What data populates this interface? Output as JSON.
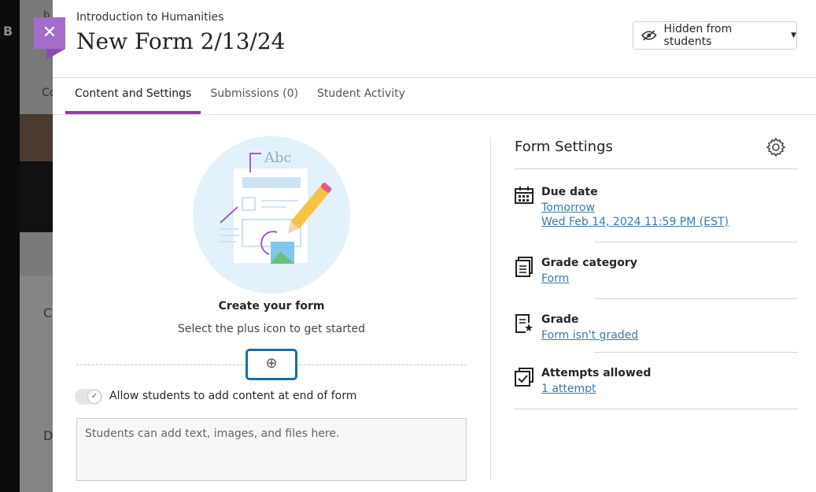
{
  "background": {
    "sidebar_letter": "B",
    "peek_texts": [
      "b",
      "Co",
      "C",
      "D"
    ]
  },
  "header": {
    "course": "Introduction to Humanities",
    "title": "New Form 2/13/24",
    "visibility": "Hidden from students"
  },
  "tabs": [
    {
      "label": "Content and Settings",
      "active": true
    },
    {
      "label": "Submissions (0)"
    },
    {
      "label": "Student Activity"
    }
  ],
  "main": {
    "heading": "Create your form",
    "subheading": "Select the plus icon to get started",
    "illustration_text": "Abc",
    "toggle_label": "Allow students to add content at end of form",
    "toggle_on": true,
    "textarea_placeholder": "Students can add text, images, and files here."
  },
  "settings": {
    "title": "Form Settings",
    "items": [
      {
        "icon": "calendar-icon",
        "label": "Due date",
        "links": [
          "Tomorrow",
          "Wed Feb 14, 2024 11:59 PM (EST)"
        ]
      },
      {
        "icon": "document-icon",
        "label": "Grade category",
        "links": [
          "Form"
        ]
      },
      {
        "icon": "grade-star-icon",
        "label": "Grade",
        "links": [
          "Form isn't graded"
        ]
      },
      {
        "icon": "checkbox-stack-icon",
        "label": "Attempts allowed",
        "links": [
          "1 attempt"
        ]
      }
    ]
  },
  "colors": {
    "accent": "#8e3fa8",
    "close": "#a76bc9",
    "link": "#3a7aa6",
    "focus": "#1c6ea4"
  }
}
